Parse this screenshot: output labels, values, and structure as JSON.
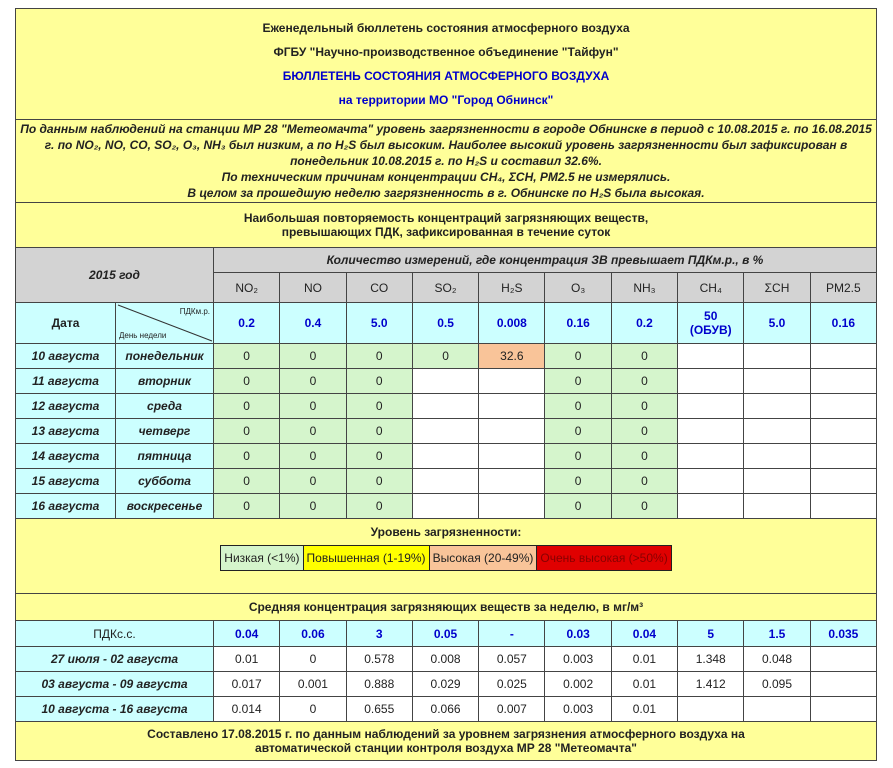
{
  "header": {
    "line1": "Еженедельный бюллетень состояния атмосферного воздуха",
    "line2": "ФГБУ \"Научно-производственное объединение \"Тайфун\"",
    "line3": "БЮЛЛЕТЕНЬ СОСТОЯНИЯ АТМОСФЕРНОГО ВОЗДУХА",
    "line4": "на территории МО \"Город Обнинск\""
  },
  "summary": {
    "p1": "По данным наблюдений на станции МР 28 \"Метеомачта\" уровень загрязненности в городе Обнинске в период с 10.08.2015 г. по 16.08.2015 г. по NO₂, NO, CO, SO₂, O₃, NH₃ был низким, а по H₂S был высоким. Наиболее высокий уровень загрязненности был зафиксирован в понедельник 10.08.2015 г. по H₂S и составил 32.6%.",
    "p2": "По техническим причинам концентрации CH₄, ΣCH, PM2.5 не измерялись.",
    "p3": "В целом за прошедшую неделю загрязненность в г. Обнинске по H₂S была высокая."
  },
  "section1_title": "Наибольшая повторяемость концентраций загрязняющих веществ, превышающих ПДК, зафиксированная в течение суток",
  "year_label": "2015 год",
  "measure_header": "Количество измерений, где концентрация ЗВ превышает ПДКм.р., в %",
  "pollutants": [
    "NO₂",
    "NO",
    "CO",
    "SO₂",
    "H₂S",
    "O₃",
    "NH₃",
    "CH₄",
    "ΣCH",
    "PM2.5"
  ],
  "date_label": "Дата",
  "pdk_mr_label": "ПДКм.р.",
  "weekday_label": "День недели",
  "pdk_mr": [
    "0.2",
    "0.4",
    "5.0",
    "0.5",
    "0.008",
    "0.16",
    "0.2",
    "50 (ОБУВ)",
    "5.0",
    "0.16"
  ],
  "daily": [
    {
      "date": "10 августа",
      "day": "понедельник",
      "values": [
        "0",
        "0",
        "0",
        "0",
        "32.6",
        "0",
        "0",
        "",
        "",
        ""
      ]
    },
    {
      "date": "11 августа",
      "day": "вторник",
      "values": [
        "0",
        "0",
        "0",
        "",
        "",
        "0",
        "0",
        "",
        "",
        ""
      ]
    },
    {
      "date": "12 августа",
      "day": "среда",
      "values": [
        "0",
        "0",
        "0",
        "",
        "",
        "0",
        "0",
        "",
        "",
        ""
      ]
    },
    {
      "date": "13 августа",
      "day": "четверг",
      "values": [
        "0",
        "0",
        "0",
        "",
        "",
        "0",
        "0",
        "",
        "",
        ""
      ]
    },
    {
      "date": "14 августа",
      "day": "пятница",
      "values": [
        "0",
        "0",
        "0",
        "",
        "",
        "0",
        "0",
        "",
        "",
        ""
      ]
    },
    {
      "date": "15 августа",
      "day": "суббота",
      "values": [
        "0",
        "0",
        "0",
        "",
        "",
        "0",
        "0",
        "",
        "",
        ""
      ]
    },
    {
      "date": "16 августа",
      "day": "воскресенье",
      "values": [
        "0",
        "0",
        "0",
        "",
        "",
        "0",
        "0",
        "",
        "",
        ""
      ]
    }
  ],
  "legend": {
    "title": "Уровень загрязненности:",
    "items": [
      {
        "label": "Низкая (<1%)",
        "color": "#d5f5cc"
      },
      {
        "label": "Повышенная (1-19%)",
        "color": "#ffff00"
      },
      {
        "label": "Высокая (20-49%)",
        "color": "#f9c499"
      },
      {
        "label": "Очень высокая (>50%)",
        "color": "#e00000"
      }
    ]
  },
  "section2_title": "Средняя концентрация загрязняющих веществ за неделю, в мг/м³",
  "pdk_ss_label": "ПДКс.с.",
  "pdk_ss": [
    "0.04",
    "0.06",
    "3",
    "0.05",
    "-",
    "0.03",
    "0.04",
    "5",
    "1.5",
    "0.035"
  ],
  "weekly": [
    {
      "period": "27 июля - 02 августа",
      "values": [
        "0.01",
        "0",
        "0.578",
        "0.008",
        "0.057",
        "0.003",
        "0.01",
        "1.348",
        "0.048",
        ""
      ]
    },
    {
      "period": "03 августа - 09 августа",
      "values": [
        "0.017",
        "0.001",
        "0.888",
        "0.029",
        "0.025",
        "0.002",
        "0.01",
        "1.412",
        "0.095",
        ""
      ]
    },
    {
      "period": "10 августа - 16 августа",
      "values": [
        "0.014",
        "0",
        "0.655",
        "0.066",
        "0.007",
        "0.003",
        "0.01",
        "",
        "",
        ""
      ]
    }
  ],
  "footer": "Составлено 17.08.2015 г. по данным наблюдений за уровнем загрязнения атмосферного воздуха на автоматической станции контроля воздуха МР 28 \"Метеомачта\""
}
